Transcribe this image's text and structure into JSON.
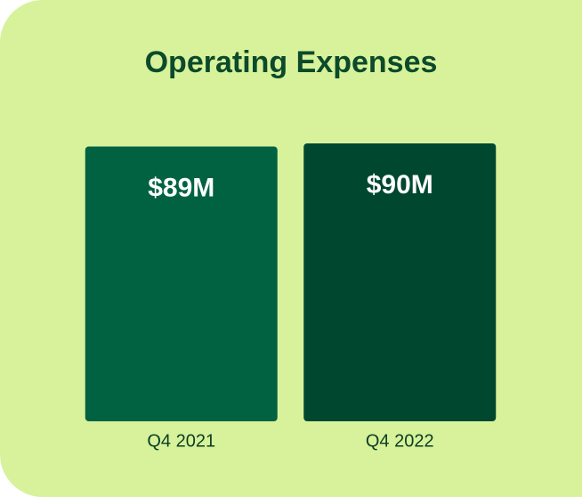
{
  "chart_data": {
    "type": "bar",
    "title": "Operating Expenses",
    "categories": [
      "Q4 2021",
      "Q4 2022"
    ],
    "values": [
      89,
      90
    ],
    "value_labels": [
      "$89M",
      "$90M"
    ],
    "colors": [
      "#006241",
      "#004730"
    ]
  }
}
